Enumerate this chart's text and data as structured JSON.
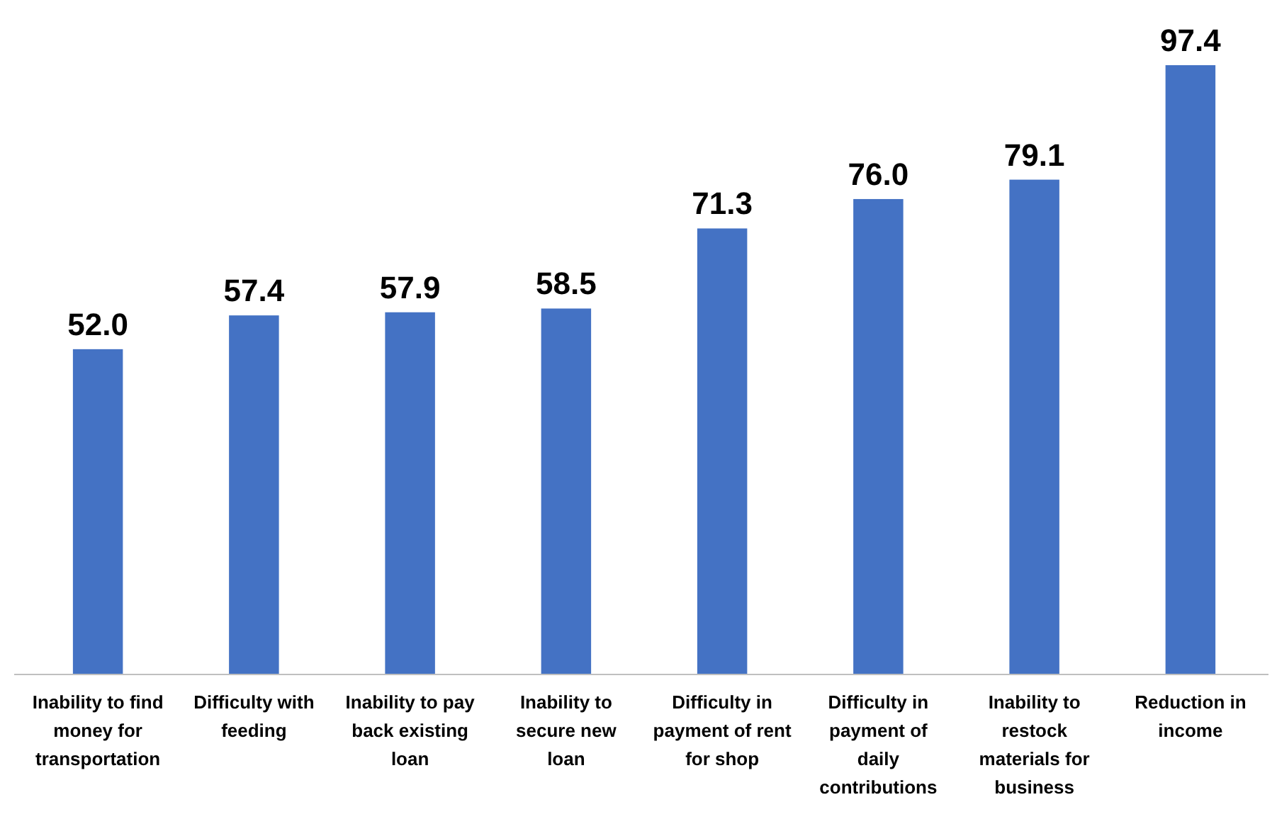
{
  "chart_data": {
    "type": "bar",
    "categories": [
      "Inability to find money for transportation",
      "Difficulty with feeding",
      "Inability to pay back existing loan",
      "Inability to secure new loan",
      "Difficulty in payment of rent for shop",
      "Difficulty in payment of daily contributions",
      "Inability to restock materials for business",
      "Reduction in income"
    ],
    "values": [
      52.0,
      57.4,
      57.9,
      58.5,
      71.3,
      76.0,
      79.1,
      97.4
    ],
    "color": "#4472c4",
    "value_labels": [
      "52.0",
      "57.4",
      "57.9",
      "58.5",
      "71.3",
      "76.0",
      "79.1",
      "97.4"
    ],
    "grid": false
  }
}
